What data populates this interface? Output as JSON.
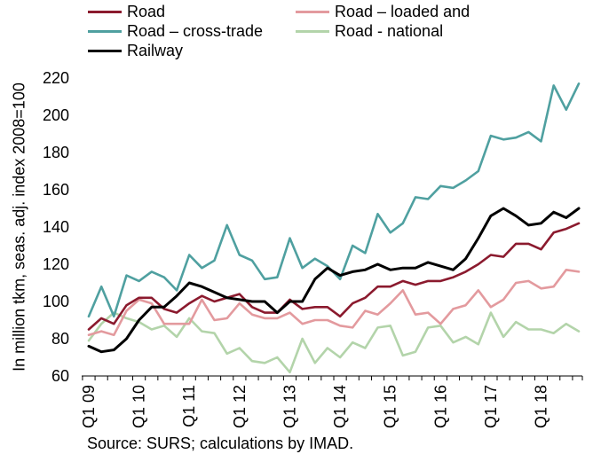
{
  "chart_data": {
    "type": "line",
    "ylabel": "In million tkm, seas. adj. index 2008=100",
    "ylim": [
      60,
      220
    ],
    "yticks": [
      60,
      80,
      100,
      120,
      140,
      160,
      180,
      200,
      220
    ],
    "xtick_labels": [
      "Q1 09",
      "Q1 10",
      "Q1 11",
      "Q1 12",
      "Q1 13",
      "Q1 14",
      "Q1 15",
      "Q1 16",
      "Q1 17",
      "Q1 18"
    ],
    "x": [
      "Q1 09",
      "Q2 09",
      "Q3 09",
      "Q4 09",
      "Q1 10",
      "Q2 10",
      "Q3 10",
      "Q4 10",
      "Q1 11",
      "Q2 11",
      "Q3 11",
      "Q4 11",
      "Q1 12",
      "Q2 12",
      "Q3 12",
      "Q4 12",
      "Q1 13",
      "Q2 13",
      "Q3 13",
      "Q4 13",
      "Q1 14",
      "Q2 14",
      "Q3 14",
      "Q4 14",
      "Q1 15",
      "Q2 15",
      "Q3 15",
      "Q4 15",
      "Q1 16",
      "Q2 16",
      "Q3 16",
      "Q4 16",
      "Q1 17",
      "Q2 17",
      "Q3 17",
      "Q4 17",
      "Q1 18",
      "Q2 18",
      "Q3 18",
      "Q4 18"
    ],
    "grid": false,
    "legend_position": "top",
    "series": [
      {
        "name": "Road",
        "color": "#8b1a2e",
        "values": [
          85,
          91,
          88,
          98,
          102,
          102,
          96,
          94,
          99,
          103,
          100,
          102,
          104,
          97,
          94,
          94,
          101,
          96,
          97,
          97,
          92,
          99,
          102,
          108,
          108,
          111,
          109,
          111,
          111,
          113,
          116,
          120,
          125,
          124,
          131,
          131,
          128,
          137,
          139,
          142
        ]
      },
      {
        "name": "Road – loaded and",
        "color": "#e39a9e",
        "values": [
          82,
          84,
          82,
          95,
          101,
          99,
          88,
          88,
          88,
          101,
          90,
          91,
          99,
          93,
          91,
          91,
          94,
          88,
          90,
          90,
          87,
          86,
          95,
          93,
          99,
          106,
          93,
          94,
          88,
          96,
          98,
          106,
          97,
          101,
          110,
          111,
          107,
          108,
          117,
          116
        ]
      },
      {
        "name": "Road – cross-trade",
        "color": "#4fa0a0",
        "values": [
          92,
          108,
          92,
          114,
          111,
          116,
          113,
          106,
          125,
          118,
          122,
          141,
          125,
          122,
          112,
          113,
          134,
          118,
          123,
          119,
          112,
          130,
          126,
          147,
          137,
          142,
          156,
          155,
          162,
          161,
          165,
          170,
          189,
          187,
          188,
          191,
          186,
          216,
          203,
          217
        ]
      },
      {
        "name": "Road - national",
        "color": "#b3d4aa",
        "values": [
          79,
          88,
          94,
          91,
          89,
          85,
          87,
          81,
          91,
          84,
          83,
          72,
          75,
          68,
          67,
          70,
          62,
          80,
          67,
          75,
          70,
          78,
          75,
          86,
          87,
          71,
          73,
          86,
          87,
          78,
          81,
          77,
          94,
          81,
          89,
          85,
          85,
          83,
          88,
          84
        ]
      },
      {
        "name": "Railway",
        "color": "#000000",
        "values": [
          76,
          73,
          74,
          80,
          90,
          97,
          97,
          103,
          110,
          108,
          105,
          102,
          101,
          100,
          100,
          94,
          100,
          100,
          112,
          118,
          114,
          116,
          117,
          120,
          117,
          118,
          118,
          121,
          119,
          117,
          123,
          134,
          146,
          150,
          146,
          141,
          142,
          148,
          145,
          150
        ]
      }
    ]
  },
  "source": "Source: SURS; calculations by IMAD."
}
